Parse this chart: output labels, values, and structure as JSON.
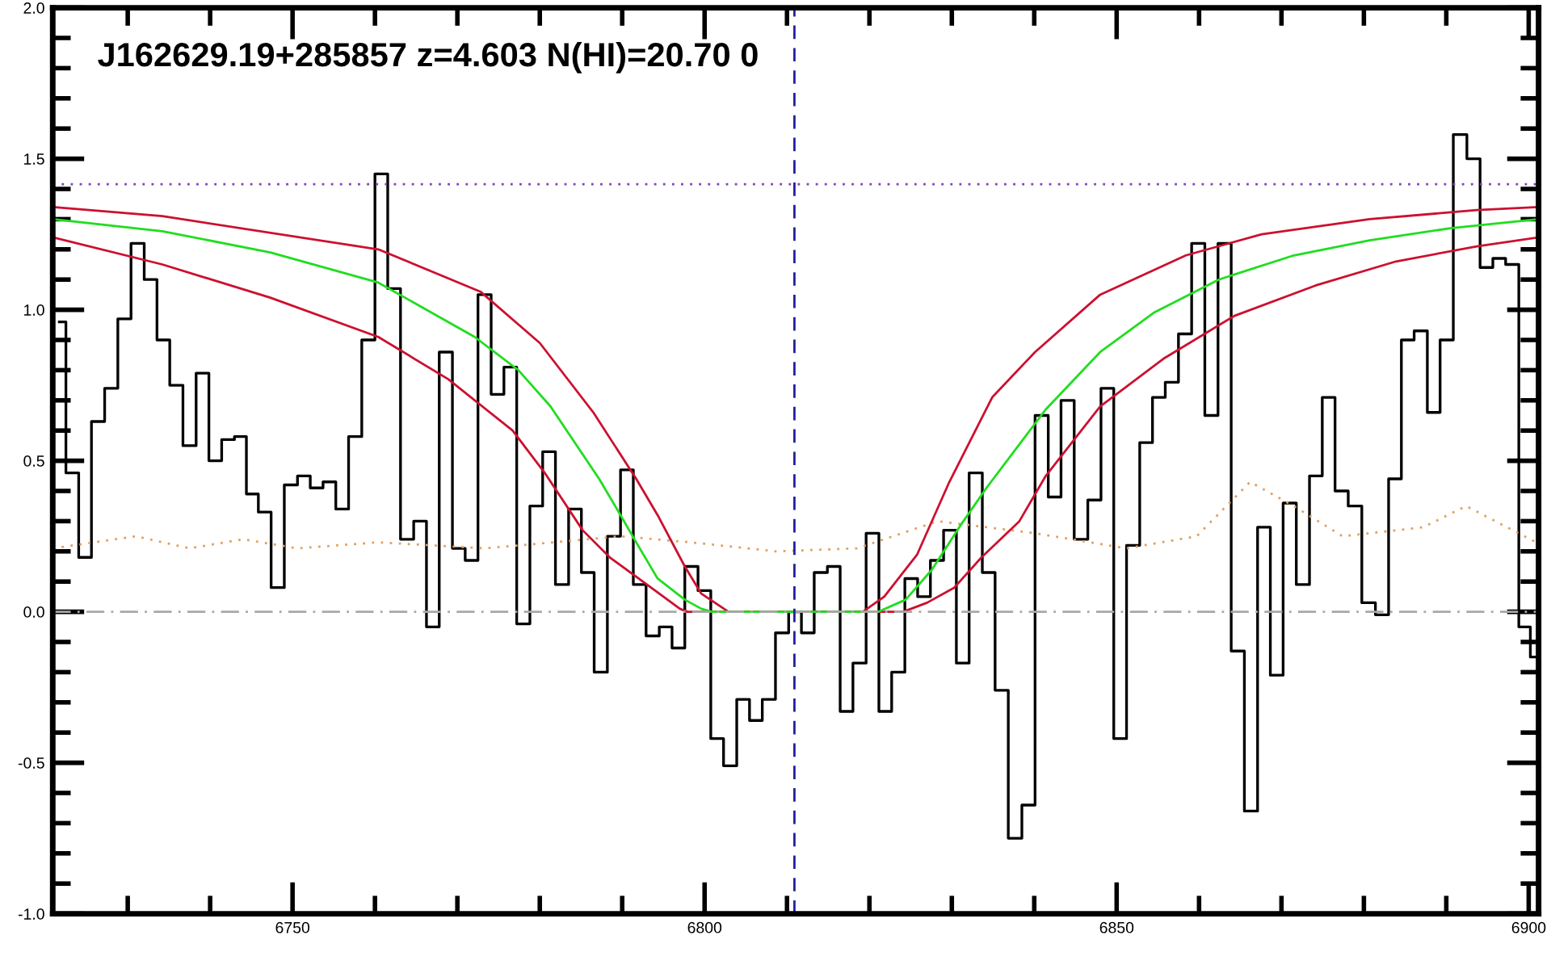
{
  "chart_data": {
    "type": "line",
    "title": "J162629.19+285857 z=4.603 N(HI)=20.70 0",
    "xlim": [
      6720.9,
      6901.2
    ],
    "ylim": [
      -1.0,
      2.0
    ],
    "xticks": [
      {
        "value": 6730,
        "label": null
      },
      {
        "value": 6740,
        "label": null
      },
      6750,
      {
        "value": 6760,
        "label": null
      },
      {
        "value": 6770,
        "label": null
      },
      {
        "value": 6780,
        "label": null
      },
      {
        "value": 6790,
        "label": null
      },
      6800,
      {
        "value": 6810,
        "label": null
      },
      {
        "value": 6820,
        "label": null
      },
      {
        "value": 6830,
        "label": null
      },
      {
        "value": 6840,
        "label": null
      },
      6850,
      {
        "value": 6860,
        "label": null
      },
      {
        "value": 6870,
        "label": null
      },
      {
        "value": 6880,
        "label": null
      },
      {
        "value": 6890,
        "label": null
      },
      6900
    ],
    "yticks": [
      {
        "value": -1.0,
        "label": "-1.0"
      },
      {
        "value": -0.9,
        "label": null
      },
      {
        "value": -0.8,
        "label": null
      },
      {
        "value": -0.7,
        "label": null
      },
      {
        "value": -0.6,
        "label": null
      },
      {
        "value": -0.5,
        "label": "-0.5"
      },
      {
        "value": -0.4,
        "label": null
      },
      {
        "value": -0.3,
        "label": null
      },
      {
        "value": -0.2,
        "label": null
      },
      {
        "value": -0.1,
        "label": null
      },
      {
        "value": 0.0,
        "label": "0.0"
      },
      {
        "value": 0.1,
        "label": null
      },
      {
        "value": 0.2,
        "label": null
      },
      {
        "value": 0.3,
        "label": null
      },
      {
        "value": 0.4,
        "label": null
      },
      {
        "value": 0.5,
        "label": "0.5"
      },
      {
        "value": 0.6,
        "label": null
      },
      {
        "value": 0.7,
        "label": null
      },
      {
        "value": 0.8,
        "label": null
      },
      {
        "value": 0.9,
        "label": null
      },
      {
        "value": 1.0,
        "label": "1.0"
      },
      {
        "value": 1.1,
        "label": null
      },
      {
        "value": 1.2,
        "label": null
      },
      {
        "value": 1.3,
        "label": null
      },
      {
        "value": 1.4,
        "label": null
      },
      {
        "value": 1.5,
        "label": "1.5"
      },
      {
        "value": 1.6,
        "label": null
      },
      {
        "value": 1.7,
        "label": null
      },
      {
        "value": 1.8,
        "label": null
      },
      {
        "value": 1.9,
        "label": null
      },
      {
        "value": 2.0,
        "label": "2.0"
      }
    ],
    "grid": false,
    "legend": false,
    "ref_lines": [
      {
        "axis": "y",
        "value": 0.0,
        "color": "#a8a8a8",
        "line_style": "dashdot"
      },
      {
        "axis": "y",
        "value": 1.416,
        "color": "#8040c0",
        "line_style": "dotted"
      },
      {
        "axis": "x",
        "value": 6810.9,
        "color": "#2020a0",
        "line_style": "dashed"
      }
    ],
    "series": [
      {
        "type": "step",
        "color": "#000000",
        "line_style": "solid",
        "x": [
          6721.7,
          6723.3,
          6724.8,
          6726.4,
          6728.0,
          6729.6,
          6731.2,
          6732.8,
          6734.3,
          6735.9,
          6737.5,
          6739.1,
          6740.6,
          6742.2,
          6743.7,
          6745.1,
          6746.6,
          6748.2,
          6749.8,
          6751.4,
          6752.9,
          6754.5,
          6756.0,
          6757.6,
          6759.2,
          6760.8,
          6762.3,
          6763.9,
          6765.5,
          6767.0,
          6768.6,
          6770.2,
          6771.7,
          6773.3,
          6774.9,
          6776.4,
          6778.0,
          6779.6,
          6781.1,
          6782.7,
          6784.3,
          6785.8,
          6787.4,
          6789.0,
          6790.6,
          6792.1,
          6793.7,
          6795.3,
          6796.8,
          6798.4,
          6800.0,
          6801.5,
          6803.1,
          6804.7,
          6806.2,
          6807.8,
          6809.4,
          6811.0,
          6812.5,
          6814.1,
          6815.7,
          6817.2,
          6818.8,
          6820.4,
          6821.9,
          6823.5,
          6825.1,
          6826.6,
          6828.2,
          6829.8,
          6831.3,
          6832.9,
          6834.5,
          6836.0,
          6837.7,
          6839.3,
          6840.9,
          6842.5,
          6844.0,
          6845.7,
          6847.3,
          6848.9,
          6850.4,
          6852.0,
          6853.6,
          6855.1,
          6856.7,
          6858.3,
          6859.9,
          6861.5,
          6863.1,
          6864.7,
          6866.3,
          6867.9,
          6869.4,
          6871.0,
          6872.6,
          6874.2,
          6875.7,
          6877.3,
          6878.9,
          6880.6,
          6882.2,
          6883.8,
          6885.3,
          6886.9,
          6888.5,
          6890.0,
          6891.7,
          6893.3,
          6894.9,
          6896.4,
          6898.0,
          6899.6,
          6900.8
        ],
        "values": [
          0.96,
          0.46,
          0.18,
          0.63,
          0.74,
          0.97,
          1.22,
          1.1,
          0.9,
          0.75,
          0.55,
          0.79,
          0.5,
          0.57,
          0.58,
          0.39,
          0.33,
          0.08,
          0.42,
          0.45,
          0.41,
          0.43,
          0.34,
          0.58,
          0.9,
          1.45,
          1.07,
          0.24,
          0.3,
          -0.05,
          0.86,
          0.21,
          0.17,
          1.05,
          0.72,
          0.81,
          -0.04,
          0.35,
          0.53,
          0.09,
          0.34,
          0.13,
          -0.2,
          0.25,
          0.47,
          0.09,
          -0.08,
          -0.05,
          -0.12,
          0.15,
          0.07,
          -0.42,
          -0.51,
          -0.29,
          -0.36,
          -0.29,
          -0.07,
          0.0,
          -0.07,
          0.13,
          0.15,
          -0.33,
          -0.17,
          0.26,
          -0.33,
          -0.2,
          0.11,
          0.05,
          0.17,
          0.27,
          -0.17,
          0.46,
          0.13,
          -0.26,
          -0.75,
          -0.64,
          0.65,
          0.38,
          0.7,
          0.24,
          0.37,
          0.74,
          -0.42,
          0.22,
          0.56,
          0.71,
          0.76,
          0.92,
          1.22,
          0.65,
          1.22,
          -0.13,
          -0.66,
          0.28,
          -0.21,
          0.36,
          0.09,
          0.45,
          0.71,
          0.4,
          0.35,
          0.03,
          -0.01,
          0.44,
          0.9,
          0.93,
          0.66,
          0.9,
          1.58,
          1.5,
          1.14,
          1.17,
          1.15,
          -0.05,
          -0.15
        ]
      },
      {
        "color": "#e0a060",
        "line_style": "dotted",
        "x": [
          6720.9,
          6731.0,
          6737.5,
          6744.0,
          6750.6,
          6760.4,
          6773.4,
          6789.8,
          6798.3,
          6808.7,
          6818.5,
          6828.3,
          6840.1,
          6851.2,
          6859.7,
          6866.2,
          6871.5,
          6877.4,
          6887.2,
          6892.4,
          6900.9
        ],
        "values": [
          0.21,
          0.25,
          0.21,
          0.24,
          0.21,
          0.23,
          0.21,
          0.25,
          0.23,
          0.2,
          0.21,
          0.3,
          0.26,
          0.21,
          0.25,
          0.43,
          0.35,
          0.25,
          0.28,
          0.35,
          0.23
        ]
      },
      {
        "type": "line",
        "color": "#cc1030",
        "line_style": "solid",
        "x": [
          6720.9,
          6734.2,
          6760.4,
          6772.8,
          6780.0,
          6786.5,
          6791.7,
          6794.3,
          6797.6,
          6799.6,
          6802.9,
          6819.2,
          6821.8,
          6825.8,
          6829.7,
          6834.9,
          6840.1,
          6848.0,
          6858.4,
          6867.6,
          6880.7,
          6893.7,
          6901.2
        ],
        "values": [
          1.34,
          1.31,
          1.2,
          1.06,
          0.89,
          0.66,
          0.44,
          0.32,
          0.15,
          0.06,
          0.0,
          0.0,
          0.05,
          0.19,
          0.43,
          0.71,
          0.86,
          1.05,
          1.18,
          1.25,
          1.3,
          1.33,
          1.34
        ]
      },
      {
        "type": "line",
        "color": "#cc1030",
        "line_style": "solid",
        "x": [
          6720.9,
          6734.2,
          6747.3,
          6760.4,
          6768.9,
          6776.7,
          6780.6,
          6785.2,
          6788.5,
          6793.0,
          6797.0,
          6797.9,
          6824.1,
          6827.0,
          6830.3,
          6833.6,
          6838.2,
          6841.4,
          6848.0,
          6855.8,
          6864.3,
          6874.1,
          6883.9,
          6893.7,
          6901.2
        ],
        "values": [
          1.24,
          1.15,
          1.04,
          0.91,
          0.77,
          0.6,
          0.46,
          0.27,
          0.18,
          0.09,
          0.01,
          0.0,
          0.0,
          0.03,
          0.08,
          0.18,
          0.3,
          0.45,
          0.68,
          0.84,
          0.98,
          1.08,
          1.16,
          1.21,
          1.24
        ]
      },
      {
        "color": "#20dd20",
        "line_style": "solid",
        "x": [
          6720.9,
          6734.2,
          6747.3,
          6760.4,
          6772.1,
          6777.4,
          6781.3,
          6787.2,
          6789.8,
          6791.7,
          6794.3,
          6797.6,
          6799.6,
          6800.9,
          6821.1,
          6824.4,
          6827.6,
          6830.9,
          6834.2,
          6841.4,
          6848.0,
          6854.5,
          6862.4,
          6871.5,
          6880.7,
          6890.5,
          6901.2
        ],
        "values": [
          1.3,
          1.26,
          1.19,
          1.09,
          0.91,
          0.8,
          0.68,
          0.44,
          0.32,
          0.23,
          0.11,
          0.04,
          0.01,
          0.0,
          0.0,
          0.04,
          0.14,
          0.28,
          0.41,
          0.67,
          0.86,
          0.99,
          1.1,
          1.18,
          1.23,
          1.27,
          1.3
        ]
      }
    ]
  }
}
